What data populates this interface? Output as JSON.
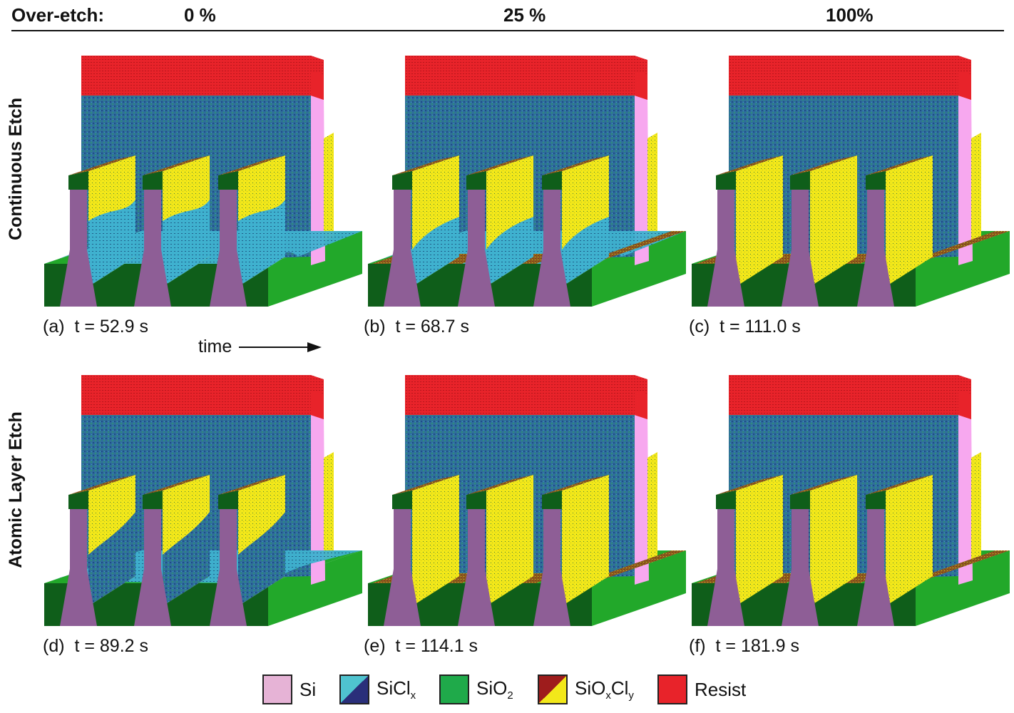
{
  "header": {
    "label": "Over-etch:",
    "col1": "0 %",
    "col2": "25 %",
    "col3": "100%"
  },
  "rows": {
    "top": "Continuous Etch",
    "bottom": "Atomic Layer Etch"
  },
  "captions": {
    "a": {
      "letter": "(a)",
      "time": "t = 52.9 s"
    },
    "b": {
      "letter": "(b)",
      "time": "t = 68.7 s"
    },
    "c": {
      "letter": "(c)",
      "time": "t = 111.0 s"
    },
    "d": {
      "letter": "(d)",
      "time": "t = 89.2 s"
    },
    "e": {
      "letter": "(e)",
      "time": "t = 114.1 s"
    },
    "f": {
      "letter": "(f)",
      "time": "t = 181.9 s"
    }
  },
  "time_label": "time",
  "legend": {
    "si": {
      "label": "Si",
      "color": "#e6b3d6"
    },
    "sicl": {
      "label": "SiCl",
      "sub": "x",
      "color1": "#4fc3cf",
      "color2": "#2a2f7a"
    },
    "sio2": {
      "label": "SiO",
      "sub": "2",
      "color": "#1faa4a"
    },
    "sioxcly": {
      "label": "SiO",
      "sub1": "x",
      "mid": "Cl",
      "sub2": "y",
      "color1": "#9e1c1c",
      "color2": "#f2e81a"
    },
    "resist": {
      "label": "Resist",
      "color": "#e8232a"
    }
  },
  "colors": {
    "si_pink": "#f7a8ef",
    "fin_purple": "#8e5e96",
    "oxide_dark": "#0f5e1a",
    "oxide_light": "#22a82a",
    "resist": "#e8232a",
    "resist_dark": "#b8161c",
    "sicl_blue": "#2f6f9a",
    "sicl_light": "#3fb1cf",
    "sioxcly_yellow": "#f2e81a",
    "sioxcly_brown": "#8a5a1e"
  }
}
